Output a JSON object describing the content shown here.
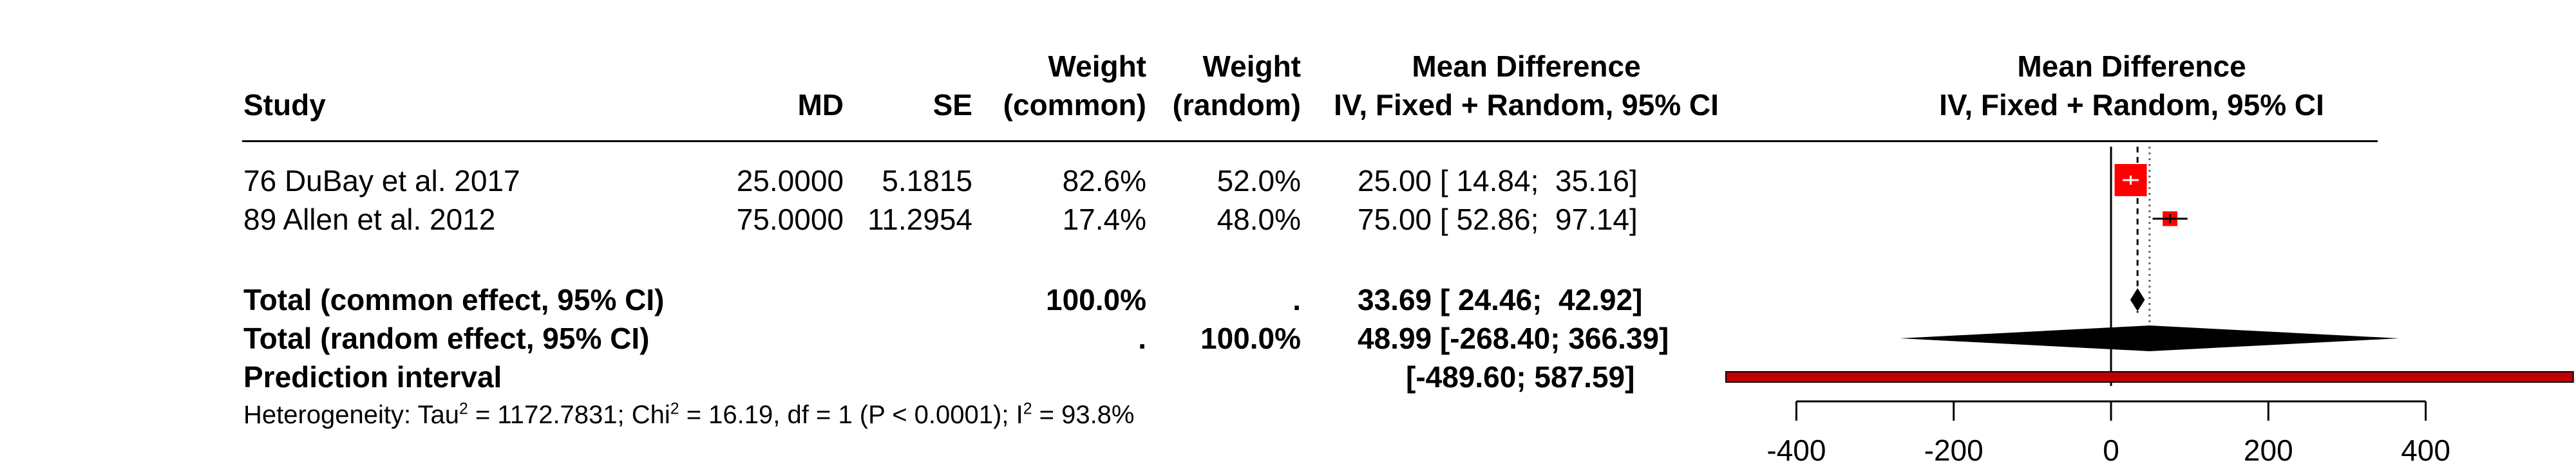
{
  "columns": {
    "study": "Study",
    "md": "MD",
    "se": "SE",
    "weight_common": [
      "Weight",
      "(common)"
    ],
    "weight_random": [
      "Weight",
      "(random)"
    ],
    "effect": [
      "Mean Difference",
      "IV, Fixed + Random, 95% CI"
    ],
    "plot": [
      "Mean Difference",
      "IV, Fixed + Random, 95% CI"
    ]
  },
  "studies": [
    {
      "study": "76 DuBay et al. 2017",
      "md": "25.0000",
      "se": "5.1815",
      "w_common": "82.6%",
      "w_random": "52.0%",
      "ci_text": "25.00 [ 14.84;  35.16]"
    },
    {
      "study": "89 Allen et al. 2012",
      "md": "75.0000",
      "se": "11.2954",
      "w_common": "17.4%",
      "w_random": "48.0%",
      "ci_text": "75.00 [ 52.86;  97.14]"
    }
  ],
  "totals": {
    "common": {
      "label": "Total (common effect, 95% CI)",
      "w_common": "100.0%",
      "w_random": ".",
      "ci_text": "33.69 [ 24.46;  42.92]"
    },
    "random": {
      "label": "Total (random effect, 95% CI)",
      "w_common": ".",
      "w_random": "100.0%",
      "ci_text": "48.99 [-268.40; 366.39]"
    },
    "prediction": {
      "label": "Prediction interval",
      "ci_text": "[-489.60; 587.59]"
    }
  },
  "heterogeneity": {
    "prefix": "Heterogeneity: Tau",
    "tau2": "2",
    "mid": " = 1172.7831; Chi",
    "chi2": "2",
    "mid2": " = 16.19, df = 1 (P < 0.0001); I",
    "i2": "2",
    "suffix": " = 93.8%"
  },
  "colors": {
    "study_box": "#ff0000",
    "diamond": "#000000",
    "prediction": "#c00000",
    "text": "#000000"
  },
  "chart_data": {
    "type": "forest",
    "xlim": [
      -489.6,
      587.59
    ],
    "ticks": [
      -400,
      -200,
      0,
      200,
      400
    ],
    "tick_labels": [
      "-400",
      "-200",
      "0",
      "200",
      "400"
    ],
    "null_line": 0,
    "studies": [
      {
        "name": "76 DuBay et al. 2017",
        "md": 25.0,
        "lower": 14.84,
        "upper": 35.16,
        "weight_common": 82.6
      },
      {
        "name": "89 Allen et al. 2012",
        "md": 75.0,
        "lower": 52.86,
        "upper": 97.14,
        "weight_common": 17.4
      }
    ],
    "common_effect": {
      "md": 33.69,
      "lower": 24.46,
      "upper": 42.92
    },
    "random_effect": {
      "md": 48.99,
      "lower": -268.4,
      "upper": 366.39
    },
    "prediction_interval": {
      "lower": -489.6,
      "upper": 587.59
    }
  }
}
